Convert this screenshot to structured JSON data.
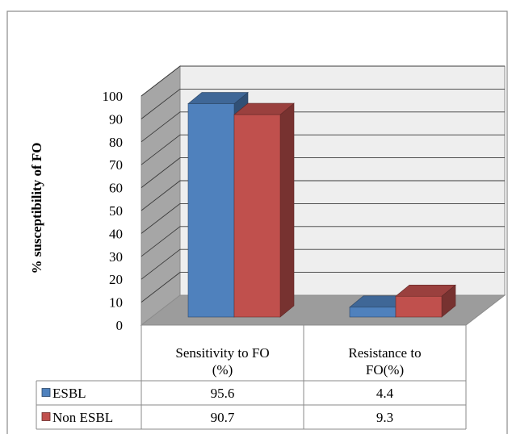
{
  "chart_data": {
    "type": "bar",
    "title": "",
    "xlabel": "",
    "ylabel": "% susceptibility of  FO",
    "categories": [
      "Sensitivity to FO\n(%)",
      "Resistance to\nFO(%)"
    ],
    "series": [
      {
        "name": "ESBL",
        "values": [
          95.6,
          4.4
        ],
        "color": "#4f81bd"
      },
      {
        "name": "Non ESBL",
        "values": [
          90.7,
          9.3
        ],
        "color": "#c0504d"
      }
    ],
    "y_ticks": [
      0,
      10,
      20,
      30,
      40,
      50,
      60,
      70,
      80,
      90,
      100
    ],
    "ylim": [
      0,
      100
    ],
    "grid": true,
    "data_table": true,
    "style": "3d-clustered-column"
  }
}
